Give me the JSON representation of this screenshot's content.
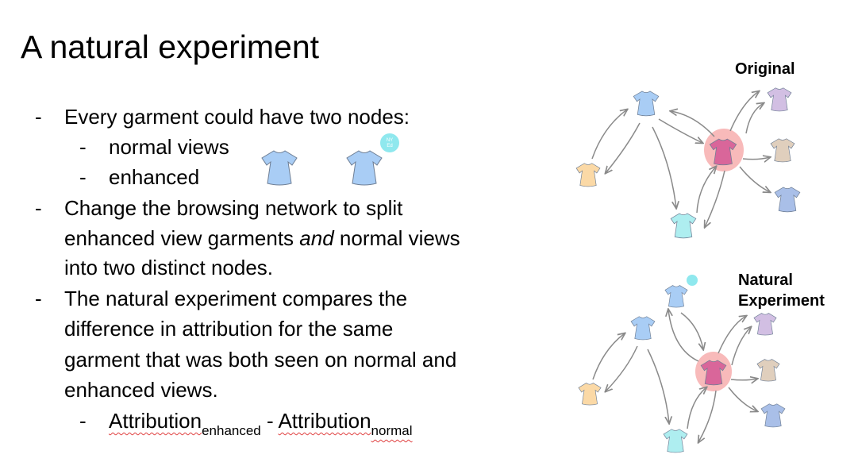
{
  "title": "A natural experiment",
  "bullets": {
    "dash": "-",
    "b1": "Every garment could have two nodes:",
    "b1_sub1": "normal views",
    "b1_sub2": "enhanced",
    "b2_line1": "Change the browsing network to split",
    "b2_line2_pre": "enhanced view garments ",
    "b2_line2_em": "and",
    "b2_line2_post": " normal views",
    "b2_line3": "into two distinct nodes.",
    "b3_line1": "The natural experiment compares the",
    "b3_line2": "difference in attribution for the same",
    "b3_line3": "garment that was both seen on normal and",
    "b3_line4": "enhanced views.",
    "formula": {
      "term": "Attribution",
      "sub_enhanced": "enhanced",
      "minus": "-",
      "sub_normal": "normal"
    }
  },
  "diagrams": {
    "original_label": "Original",
    "natural_label_line1": "Natural",
    "natural_label_line2": "Experiment"
  },
  "icons": {
    "normal_garment": "shirt-icon",
    "enhanced_garment": "enhanced-shirt-icon",
    "badge_text": "NY\nEd"
  },
  "colors": {
    "blue_garment": "#a9cdf5",
    "pink_garment": "#d9669a",
    "highlight": "#f6a3a3",
    "orange_garment": "#fbd9a6",
    "purple_garment": "#d2bfe3",
    "beige_garment": "#e0cfbd",
    "periwinkle_garment": "#a9bfe8",
    "cyan_garment": "#aeeef0",
    "badge": "#8fe8ee",
    "arrow": "#8a8a8a",
    "squiggle": "#e04040"
  }
}
